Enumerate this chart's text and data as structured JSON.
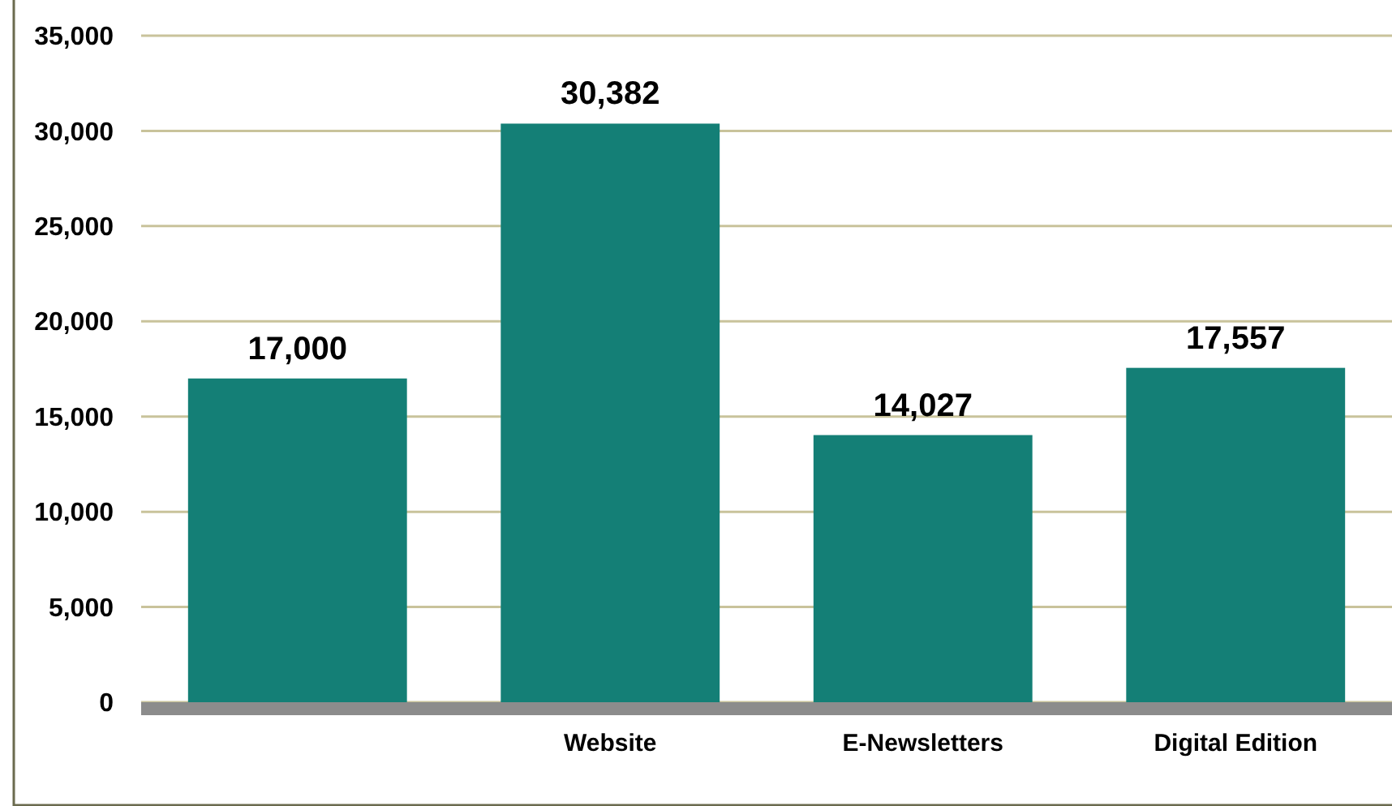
{
  "chart_data": {
    "type": "bar",
    "categories": [
      null,
      "Website",
      "E-Newsletters",
      "Digital Edition"
    ],
    "values": [
      17000,
      30382,
      14027,
      17557
    ],
    "color": "#147f76",
    "ylim": [
      0,
      35000
    ],
    "yticks": [
      {
        "value": 0,
        "label": "0"
      },
      {
        "value": 5000,
        "label": "5,000"
      },
      {
        "value": 10000,
        "label": "10,000"
      },
      {
        "value": 15000,
        "label": "15,000"
      },
      {
        "value": 20000,
        "label": "20,000"
      },
      {
        "value": 25000,
        "label": "25,000"
      },
      {
        "value": 30000,
        "label": "30,000"
      },
      {
        "value": 35000,
        "label": "35,000"
      }
    ],
    "value_labels": [
      "17,000",
      "30,382",
      "14,027",
      "17,557"
    ],
    "grid": "y"
  }
}
